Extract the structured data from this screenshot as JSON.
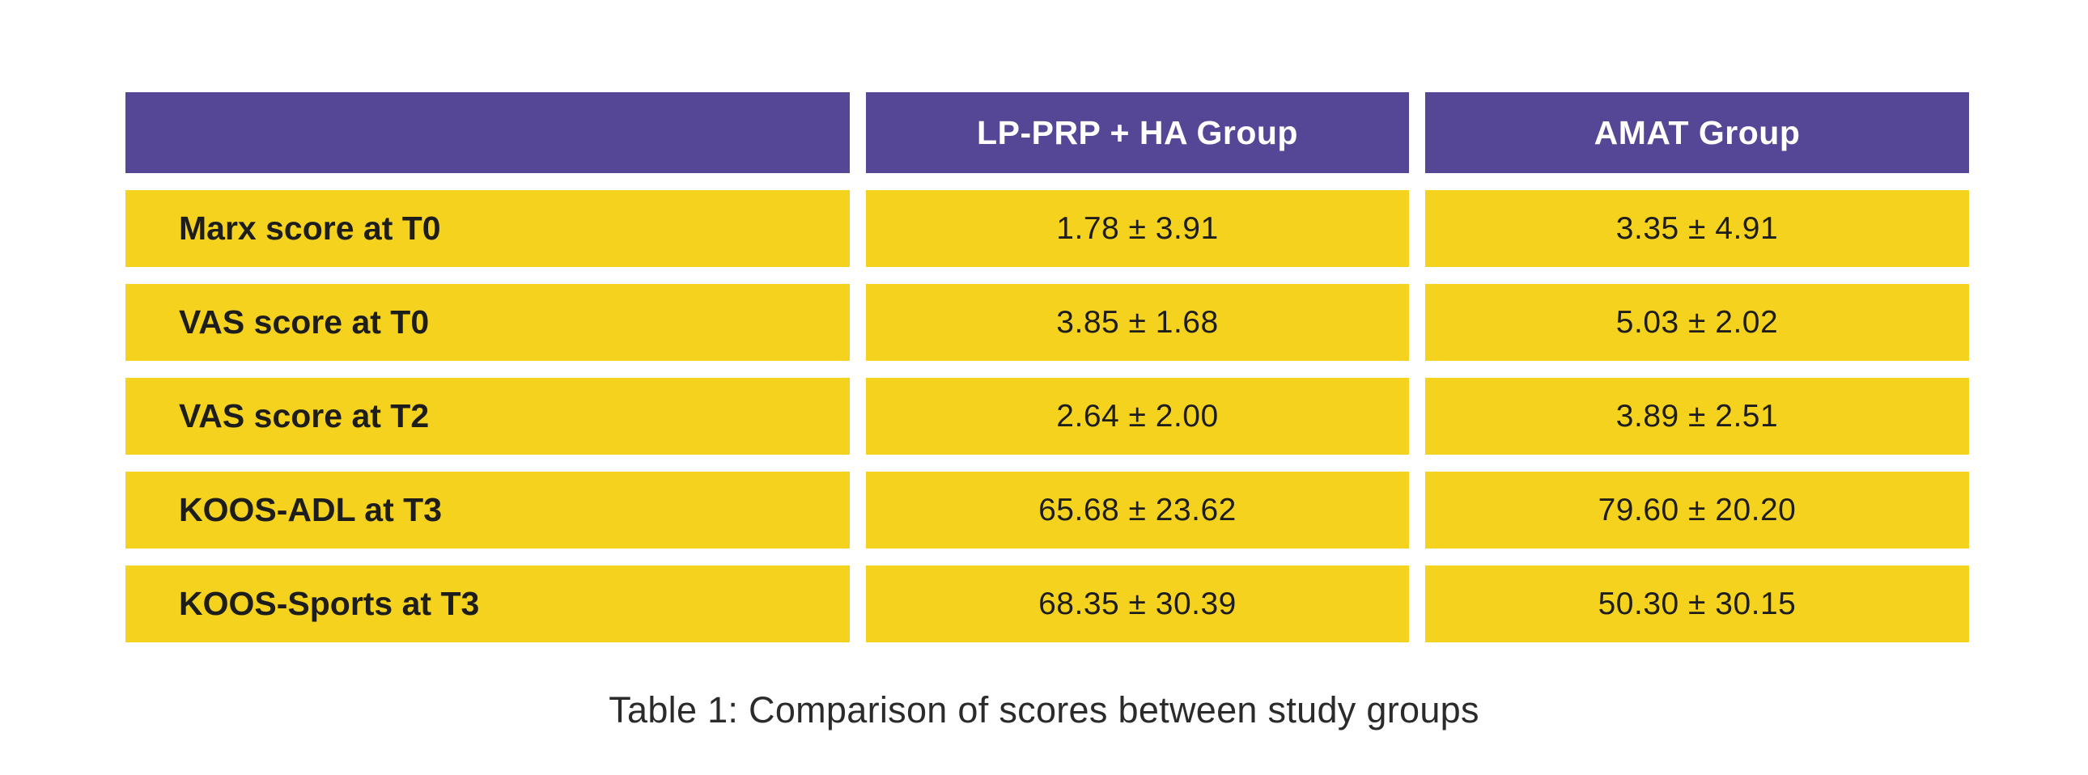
{
  "table": {
    "header": {
      "col1": "",
      "col2": "LP-PRP + HA Group",
      "col3": "AMAT Group"
    },
    "rows": [
      {
        "label": "Marx score at T0",
        "lp_prp_ha": "1.78 ± 3.91",
        "amat": "3.35 ± 4.91"
      },
      {
        "label": "VAS score at T0",
        "lp_prp_ha": "3.85 ± 1.68",
        "amat": "5.03 ± 2.02"
      },
      {
        "label": "VAS score at T2",
        "lp_prp_ha": "2.64 ± 2.00",
        "amat": "3.89 ± 2.51"
      },
      {
        "label": "KOOS-ADL at T3",
        "lp_prp_ha": "65.68 ± 23.62",
        "amat": "79.60 ± 20.20"
      },
      {
        "label": "KOOS-Sports at T3",
        "lp_prp_ha": "68.35 ± 30.39",
        "amat": "50.30 ± 30.15"
      }
    ]
  },
  "caption": "Table 1: Comparison of scores between study groups",
  "colors": {
    "header_bg": "#554795",
    "row_bg": "#F5D21E",
    "header_text": "#FFFFFF",
    "body_text": "#1D1D1B"
  }
}
